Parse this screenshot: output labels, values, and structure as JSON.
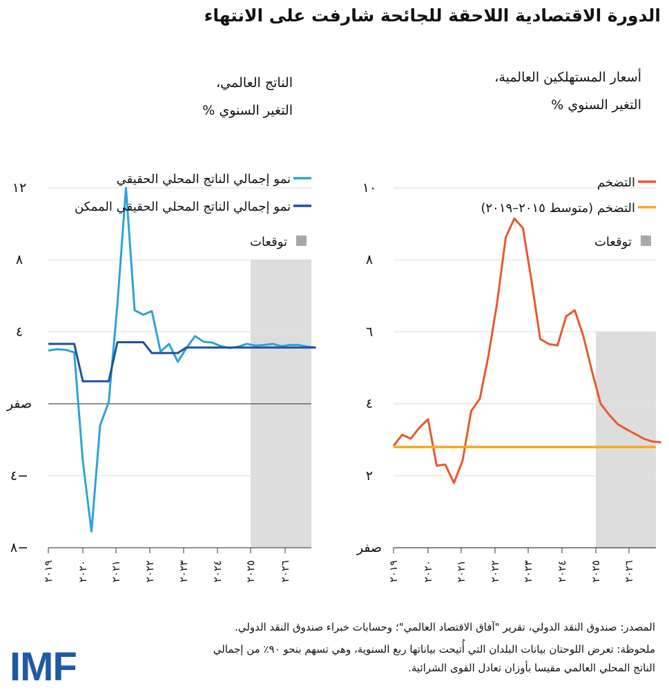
{
  "title": "الدورة الاقتصادية اللاحقة للجائحة شارفت على الانتهاء",
  "colors": {
    "gdp": "#2aa3dc",
    "potential": "#1d4f9e",
    "inflation": "#e8582a",
    "avg": "#f5aa1c",
    "forecast": "#dddddd",
    "forecast_legend": "#a8a8a8",
    "logo": "#1f5aa6"
  },
  "source": "المصدر: صندوق النقد الدولي، تقرير \"آفاق الاقتصاد العالمي\"؛ وحسابات خبراء صندوق النقد الدولي.",
  "note_line1": "ملحوظة: تعرض اللوحتان بيانات البلدان التي أُتيحت بياناتها ربع السنوية، وهي تسهم بنحو ٩٠٪ من إجمالي",
  "note_line2": "الناتج المحلي العالمي مقيسا بأوزان تعادل القوى الشرائية.",
  "logo_text": "IMF",
  "chart_data": [
    {
      "type": "line",
      "title_line1": "الناتج العالمي،",
      "title_line2": "التغير السنوي %",
      "x_ticks": [
        "٢٠١٩",
        "٢٠٢٠",
        "٢٠٢١",
        "٢٠٢٢",
        "٢٠٢٣",
        "٢٠٢٤",
        "٢٠٢٥",
        "٢٠٢٦"
      ],
      "x_start_year": 2019,
      "frequency": "quarterly",
      "y_ticks": [
        {
          "v": 12,
          "label": "١٢"
        },
        {
          "v": 8,
          "label": "٨"
        },
        {
          "v": 4,
          "label": "٤"
        },
        {
          "v": 0,
          "label": "صفر"
        },
        {
          "v": -4,
          "label": "٤−"
        },
        {
          "v": -8,
          "label": "٨−"
        }
      ],
      "ylim": [
        -8,
        12
      ],
      "forecast": {
        "from_year": 2025,
        "top": 8,
        "label": "توقعات"
      },
      "series": [
        {
          "name": "نمو إجمالي الناتج المحلي الحقيقي",
          "color_key": "gdp",
          "values": [
            2.96,
            3.03,
            3.0,
            2.86,
            -3.2,
            -7.1,
            -1.2,
            0.1,
            5.5,
            12.0,
            5.2,
            4.95,
            5.15,
            2.9,
            3.33,
            2.33,
            3.1,
            3.76,
            3.45,
            3.4,
            3.2,
            3.1,
            3.17,
            3.33,
            3.24,
            3.27,
            3.33,
            3.2,
            3.27,
            3.27,
            3.17,
            3.13
          ]
        },
        {
          "name": "نمو إجمالي الناتج المحلي الحقيقي الممكن",
          "color_key": "potential",
          "values": [
            3.33,
            3.33,
            3.33,
            3.33,
            1.25,
            1.25,
            1.25,
            1.25,
            3.42,
            3.42,
            3.42,
            3.42,
            2.82,
            2.82,
            2.82,
            2.82,
            3.13,
            3.13,
            3.13,
            3.13,
            3.13,
            3.13,
            3.13,
            3.13,
            3.13,
            3.13,
            3.13,
            3.13,
            3.13,
            3.13,
            3.13,
            3.13
          ]
        }
      ]
    },
    {
      "type": "line",
      "title_line1": "أسعار المستهلكين العالمية،",
      "title_line2": "التغير السنوي %",
      "x_ticks": [
        "٢٠١٩",
        "٢٠٢٠",
        "٢٠٢١",
        "٢٠٢٢",
        "٢٠٢٣",
        "٢٠٢٤",
        "٢٠٢٥",
        "٢٠٢٦"
      ],
      "x_start_year": 2019,
      "frequency": "quarterly",
      "y_ticks": [
        {
          "v": 10,
          "label": "١٠"
        },
        {
          "v": 8,
          "label": "٨"
        },
        {
          "v": 6,
          "label": "٦"
        },
        {
          "v": 4,
          "label": "٤"
        },
        {
          "v": 2,
          "label": "٢"
        },
        {
          "v": 0,
          "label": "صفر"
        }
      ],
      "ylim": [
        0,
        10
      ],
      "forecast": {
        "from_year": 2025,
        "top": 6,
        "label": "توقعات"
      },
      "series": [
        {
          "name": "التضخم",
          "color_key": "inflation",
          "values": [
            2.83,
            3.14,
            3.03,
            3.34,
            3.57,
            2.28,
            2.31,
            1.8,
            2.42,
            3.8,
            4.14,
            5.34,
            6.8,
            8.62,
            9.15,
            8.88,
            7.4,
            5.8,
            5.66,
            5.62,
            6.43,
            6.6,
            5.88,
            4.9,
            4.0,
            3.69,
            3.43,
            3.29,
            3.16,
            3.03,
            2.95,
            2.93
          ]
        },
        {
          "name": "التضخم (متوسط ٢٠١٥–٢٠١٩)",
          "color_key": "avg",
          "constant": 2.8
        }
      ]
    }
  ]
}
